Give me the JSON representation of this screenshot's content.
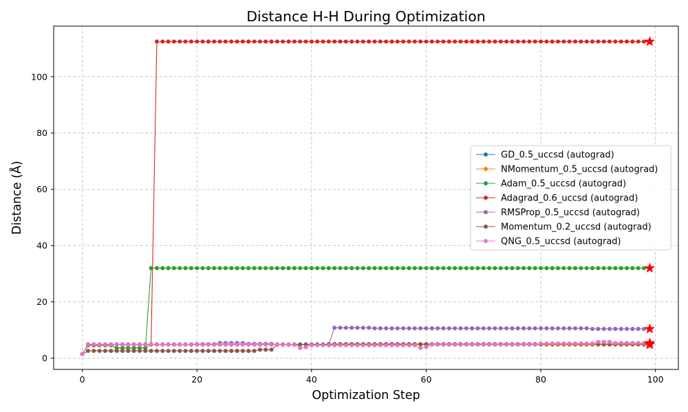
{
  "chart_data": {
    "type": "line",
    "title": "Distance H-H During Optimization",
    "xlabel": "Optimization Step",
    "ylabel": "Distance (Å)",
    "xlim": [
      -5,
      104
    ],
    "ylim": [
      -4,
      118
    ],
    "xticks": [
      0,
      20,
      40,
      60,
      80,
      100
    ],
    "yticks": [
      0,
      20,
      40,
      60,
      80,
      100
    ],
    "grid": true,
    "legend_position": "center-right",
    "final_marker": "star",
    "final_marker_color": "#ff0000",
    "series": [
      {
        "name": "GD_0.5_uccsd (autograd)",
        "color": "#1f77b4",
        "segments": [
          [
            0,
            0,
            1.5
          ],
          [
            1,
            99,
            4.9
          ]
        ]
      },
      {
        "name": "NMomentum_0.5_uccsd (autograd)",
        "color": "#ff7f0e",
        "segments": [
          [
            0,
            0,
            1.5
          ],
          [
            1,
            5,
            4.5
          ],
          [
            6,
            11,
            3.6
          ],
          [
            12,
            99,
            4.8
          ]
        ]
      },
      {
        "name": "Adam_0.5_uccsd (autograd)",
        "color": "#2ca02c",
        "segments": [
          [
            0,
            0,
            1.5
          ],
          [
            1,
            5,
            4.6
          ],
          [
            6,
            11,
            3.6
          ],
          [
            12,
            99,
            32
          ]
        ]
      },
      {
        "name": "Adagrad_0.6_uccsd (autograd)",
        "color": "#d62728",
        "segments": [
          [
            0,
            0,
            1.5
          ],
          [
            1,
            12,
            4.8
          ],
          [
            13,
            99,
            112.5
          ]
        ]
      },
      {
        "name": "RMSProp_0.5_uccsd (autograd)",
        "color": "#9467bd",
        "segments": [
          [
            0,
            0,
            1.5
          ],
          [
            1,
            19,
            4.9
          ],
          [
            20,
            23,
            5.0
          ],
          [
            24,
            28,
            5.4
          ],
          [
            29,
            33,
            5.1
          ],
          [
            34,
            43,
            4.8
          ],
          [
            44,
            50,
            10.8
          ],
          [
            51,
            88,
            10.6
          ],
          [
            89,
            99,
            10.4
          ]
        ]
      },
      {
        "name": "Momentum_0.2_uccsd (autograd)",
        "color": "#8c564b",
        "segments": [
          [
            0,
            0,
            1.5
          ],
          [
            1,
            30,
            2.6
          ],
          [
            31,
            33,
            3.0
          ],
          [
            34,
            42,
            4.8
          ],
          [
            43,
            99,
            5.0
          ]
        ]
      },
      {
        "name": "QNG_0.5_uccsd (autograd)",
        "color": "#e377c2",
        "segments": [
          [
            0,
            0,
            1.5
          ],
          [
            1,
            37,
            4.8
          ],
          [
            38,
            38,
            3.6
          ],
          [
            39,
            39,
            3.9
          ],
          [
            40,
            58,
            4.6
          ],
          [
            59,
            59,
            3.6
          ],
          [
            60,
            60,
            4.0
          ],
          [
            61,
            79,
            4.8
          ],
          [
            80,
            89,
            5.2
          ],
          [
            90,
            92,
            5.8
          ],
          [
            93,
            99,
            5.4
          ]
        ]
      }
    ]
  }
}
